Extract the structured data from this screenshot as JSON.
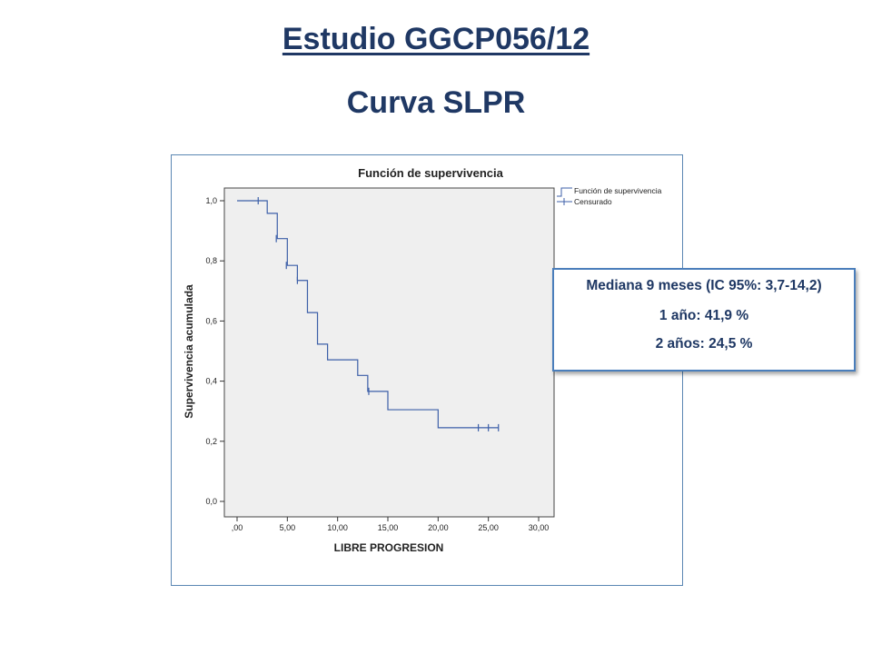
{
  "slide": {
    "title": "Estudio GGCP056/12",
    "subtitle": "Curva SLPR"
  },
  "colors": {
    "title": "#1f3864",
    "curve": "#3c5fa8",
    "plot_bg": "#efefef",
    "box_border": "#4a7ebb"
  },
  "stats_box": {
    "line1": "Mediana 9 meses (IC 95%: 3,7-14,2)",
    "line2": "1 año: 41,9 %",
    "line3": "2 años: 24,5 %"
  },
  "chart_data": {
    "type": "line",
    "step": "post",
    "title": "Función de supervivencia",
    "xlabel": "LIBRE PROGRESION",
    "ylabel": "Supervivencia acumulada",
    "xlim": [
      0,
      30
    ],
    "ylim": [
      0,
      1
    ],
    "x_ticks": [
      0,
      5,
      10,
      15,
      20,
      25,
      30
    ],
    "x_tick_labels": [
      ",00",
      "5,00",
      "10,00",
      "15,00",
      "20,00",
      "25,00",
      "30,00"
    ],
    "y_ticks": [
      0,
      0.2,
      0.4,
      0.6,
      0.8,
      1.0
    ],
    "y_tick_labels": [
      "0,0",
      "0,2",
      "0,4",
      "0,6",
      "0,8",
      "1,0"
    ],
    "legend": {
      "position": "top-right",
      "entries": [
        "Función de supervivencia",
        "Censurado"
      ]
    },
    "series": [
      {
        "name": "Función de supervivencia",
        "x": [
          0,
          3,
          4,
          5,
          6,
          7,
          8,
          9,
          12,
          13,
          15,
          20,
          26
        ],
        "y": [
          1.0,
          0.958,
          0.874,
          0.785,
          0.735,
          0.628,
          0.523,
          0.471,
          0.419,
          0.366,
          0.305,
          0.245,
          0.245
        ]
      },
      {
        "name": "Censurado",
        "x": [
          2.1,
          3.9,
          4.9,
          6.0,
          13.1,
          24.0,
          25.0,
          26.0
        ],
        "y": [
          1.0,
          0.874,
          0.785,
          0.735,
          0.366,
          0.245,
          0.245,
          0.245
        ]
      }
    ]
  }
}
